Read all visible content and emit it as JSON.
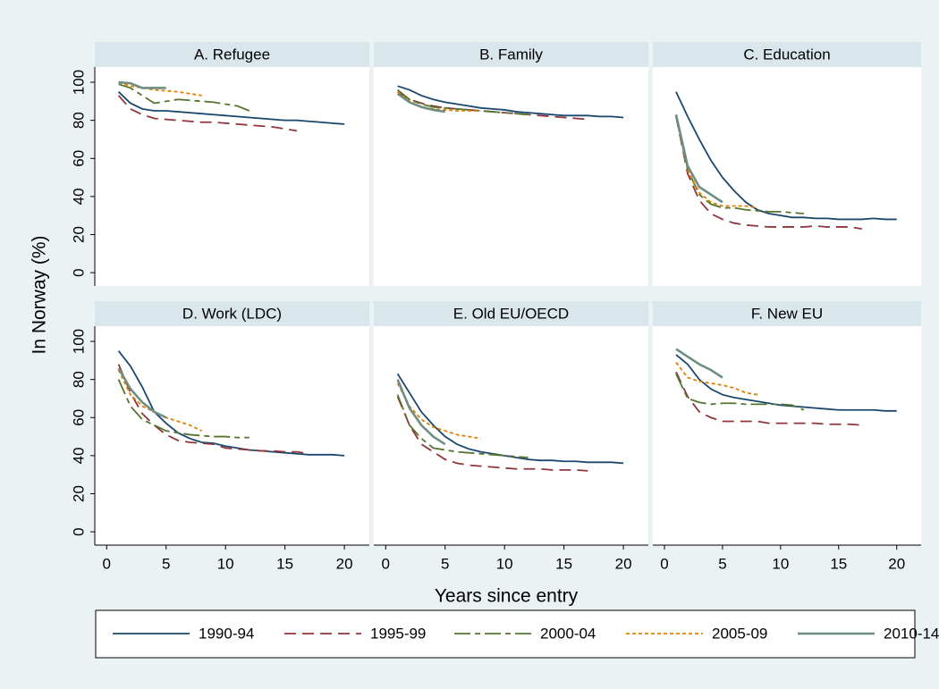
{
  "chart_data": {
    "type": "line",
    "y_label": "In Norway (%)",
    "x_label": "Years since entry",
    "xlim": [
      -1,
      22.1
    ],
    "ylim": [
      -7,
      108
    ],
    "xticks": [
      0,
      5,
      10,
      15,
      20
    ],
    "yticks": [
      0,
      20,
      40,
      60,
      80,
      100
    ],
    "x": [
      1,
      2,
      3,
      4,
      5,
      6,
      7,
      8,
      9,
      10,
      11,
      12,
      13,
      14,
      15,
      16,
      17,
      18,
      19,
      20
    ],
    "legend": [
      {
        "name": "1990-94",
        "color": "#1a476f",
        "dash": "none"
      },
      {
        "name": "1995-99",
        "color": "#90353b",
        "dash": "13,7"
      },
      {
        "name": "2000-04",
        "color": "#55752f",
        "dash": "18,5,6,5"
      },
      {
        "name": "2005-09",
        "color": "#e37e00",
        "dash": "4,3"
      },
      {
        "name": "2010-14",
        "color": "#6e8e84",
        "dash": "none"
      }
    ],
    "panels": [
      {
        "title": "A. Refugee",
        "series": [
          {
            "values": [
              95,
              89,
              86,
              85,
              85,
              84.5,
              84,
              83.5,
              83,
              82.5,
              82,
              81.5,
              81,
              80.5,
              80,
              80,
              79.5,
              79,
              78.5,
              78
            ]
          },
          {
            "values": [
              93,
              86,
              83,
              81,
              80.5,
              80,
              79.5,
              79,
              79,
              78.5,
              78,
              77.5,
              77,
              76.5,
              75.5,
              74.5,
              null,
              null,
              null,
              null
            ]
          },
          {
            "values": [
              99,
              97,
              93,
              89,
              90,
              91,
              90.5,
              90,
              89.5,
              88.5,
              87.5,
              85,
              null,
              null,
              null,
              null,
              null,
              null,
              null,
              null
            ]
          },
          {
            "values": [
              100,
              98,
              97,
              96,
              95.5,
              95,
              94,
              93,
              null,
              null,
              null,
              null,
              null,
              null,
              null,
              null,
              null,
              null,
              null,
              null
            ]
          },
          {
            "values": [
              100,
              99.5,
              97,
              97,
              97,
              null,
              null,
              null,
              null,
              null,
              null,
              null,
              null,
              null,
              null,
              null,
              null,
              null,
              null,
              null
            ]
          }
        ]
      },
      {
        "title": "B. Family",
        "series": [
          {
            "values": [
              98,
              96,
              93,
              91,
              89.5,
              88.5,
              87.5,
              86.5,
              86,
              85.5,
              84.5,
              84,
              83.5,
              83,
              82.5,
              82.5,
              82.5,
              82,
              82,
              81.5
            ]
          },
          {
            "values": [
              95,
              91,
              89,
              87.5,
              86.5,
              86,
              85.5,
              85,
              84.5,
              84,
              83.5,
              83,
              82.5,
              82,
              81.5,
              81,
              80.5,
              null,
              null,
              null
            ]
          },
          {
            "values": [
              96,
              91,
              88.5,
              87,
              86.5,
              86,
              85.5,
              85,
              84.5,
              84,
              83.5,
              83,
              null,
              null,
              null,
              null,
              null,
              null,
              null,
              null
            ]
          },
          {
            "values": [
              95,
              90,
              87,
              86,
              85.5,
              85,
              85,
              85,
              null,
              null,
              null,
              null,
              null,
              null,
              null,
              null,
              null,
              null,
              null,
              null
            ]
          },
          {
            "values": [
              94,
              89.5,
              87,
              85.5,
              84.5,
              null,
              null,
              null,
              null,
              null,
              null,
              null,
              null,
              null,
              null,
              null,
              null,
              null,
              null,
              null
            ]
          }
        ]
      },
      {
        "title": "C. Education",
        "series": [
          {
            "values": [
              95,
              82,
              70,
              59,
              50,
              43,
              37,
              33,
              31,
              30,
              29,
              29,
              28.5,
              28.5,
              28,
              28,
              28,
              28.5,
              28,
              28
            ]
          },
          {
            "values": [
              82,
              52,
              38,
              31,
              28,
              26,
              25,
              24.5,
              24,
              24,
              24,
              24,
              24.5,
              24,
              24,
              24,
              23,
              null,
              null,
              null
            ]
          },
          {
            "values": [
              82,
              54,
              41,
              36,
              34,
              34,
              33,
              32.5,
              32,
              32,
              31.5,
              31,
              null,
              null,
              null,
              null,
              null,
              null,
              null,
              null
            ]
          },
          {
            "values": [
              83,
              54,
              42,
              37,
              35,
              35,
              35,
              34,
              null,
              null,
              null,
              null,
              null,
              null,
              null,
              null,
              null,
              null,
              null,
              null
            ]
          },
          {
            "values": [
              83,
              56,
              45,
              41,
              37,
              null,
              null,
              null,
              null,
              null,
              null,
              null,
              null,
              null,
              null,
              null,
              null,
              null,
              null,
              null
            ]
          }
        ]
      },
      {
        "title": "D. Work (LDC)",
        "series": [
          {
            "values": [
              95,
              87,
              76,
              63,
              57,
              52,
              49,
              47,
              46.5,
              45,
              44,
              43,
              42.5,
              42,
              41.5,
              41,
              40.5,
              40.5,
              40.5,
              40
            ]
          },
          {
            "values": [
              88,
              73,
              62,
              56,
              51,
              48,
              47,
              46.5,
              46,
              44,
              43.5,
              43,
              42.5,
              42.5,
              42,
              42,
              41,
              null,
              null,
              null
            ]
          },
          {
            "values": [
              80,
              66,
              59,
              56,
              53,
              52,
              51,
              50.5,
              50,
              50,
              49.5,
              49.5,
              null,
              null,
              null,
              null,
              null,
              null,
              null,
              null
            ]
          },
          {
            "values": [
              85,
              72,
              66,
              63,
              60,
              58,
              56,
              53,
              null,
              null,
              null,
              null,
              null,
              null,
              null,
              null,
              null,
              null,
              null,
              null
            ]
          },
          {
            "values": [
              86,
              75,
              68,
              63,
              60,
              null,
              null,
              null,
              null,
              null,
              null,
              null,
              null,
              null,
              null,
              null,
              null,
              null,
              null,
              null
            ]
          }
        ]
      },
      {
        "title": "E. Old EU/OECD",
        "series": [
          {
            "values": [
              83,
              73,
              63,
              56,
              50,
              46,
              43.5,
              42,
              41,
              40,
              39,
              38,
              37.5,
              37.5,
              37,
              37,
              36.5,
              36.5,
              36.5,
              36
            ]
          },
          {
            "values": [
              71,
              56,
              46,
              42,
              38,
              36,
              35,
              34.5,
              34,
              33.5,
              33,
              33,
              33,
              32.5,
              32.5,
              32.5,
              32,
              null,
              null,
              null
            ]
          },
          {
            "values": [
              72,
              56,
              49,
              44,
              43,
              42,
              41.5,
              41,
              40.5,
              40,
              39.5,
              39,
              null,
              null,
              null,
              null,
              null,
              null,
              null,
              null
            ]
          },
          {
            "values": [
              78,
              66,
              59,
              55,
              53,
              51,
              50,
              49,
              null,
              null,
              null,
              null,
              null,
              null,
              null,
              null,
              null,
              null,
              null,
              null
            ]
          },
          {
            "values": [
              80,
              65,
              56,
              50,
              46,
              null,
              null,
              null,
              null,
              null,
              null,
              null,
              null,
              null,
              null,
              null,
              null,
              null,
              null,
              null
            ]
          }
        ]
      },
      {
        "title": "F. New EU",
        "series": [
          {
            "values": [
              93,
              88,
              80,
              75,
              72,
              70.5,
              69.5,
              68.5,
              67.5,
              66.5,
              66,
              65.5,
              65,
              64.5,
              64,
              64,
              64,
              64,
              63.5,
              63.5
            ]
          },
          {
            "values": [
              84,
              71,
              63,
              60,
              58,
              58,
              58,
              58,
              57,
              57,
              57,
              57,
              57,
              56.5,
              56.5,
              56.5,
              56,
              null,
              null,
              null
            ]
          },
          {
            "values": [
              83,
              70,
              68,
              67,
              67.5,
              67.5,
              67,
              67,
              67,
              67,
              66.5,
              64,
              null,
              null,
              null,
              null,
              null,
              null,
              null,
              null
            ]
          },
          {
            "values": [
              89,
              81,
              79,
              78,
              77,
              75.5,
              73,
              72,
              null,
              null,
              null,
              null,
              null,
              null,
              null,
              null,
              null,
              null,
              null,
              null
            ]
          },
          {
            "values": [
              96,
              92,
              88,
              85,
              81,
              null,
              null,
              null,
              null,
              null,
              null,
              null,
              null,
              null,
              null,
              null,
              null,
              null,
              null,
              null
            ]
          }
        ]
      }
    ]
  }
}
